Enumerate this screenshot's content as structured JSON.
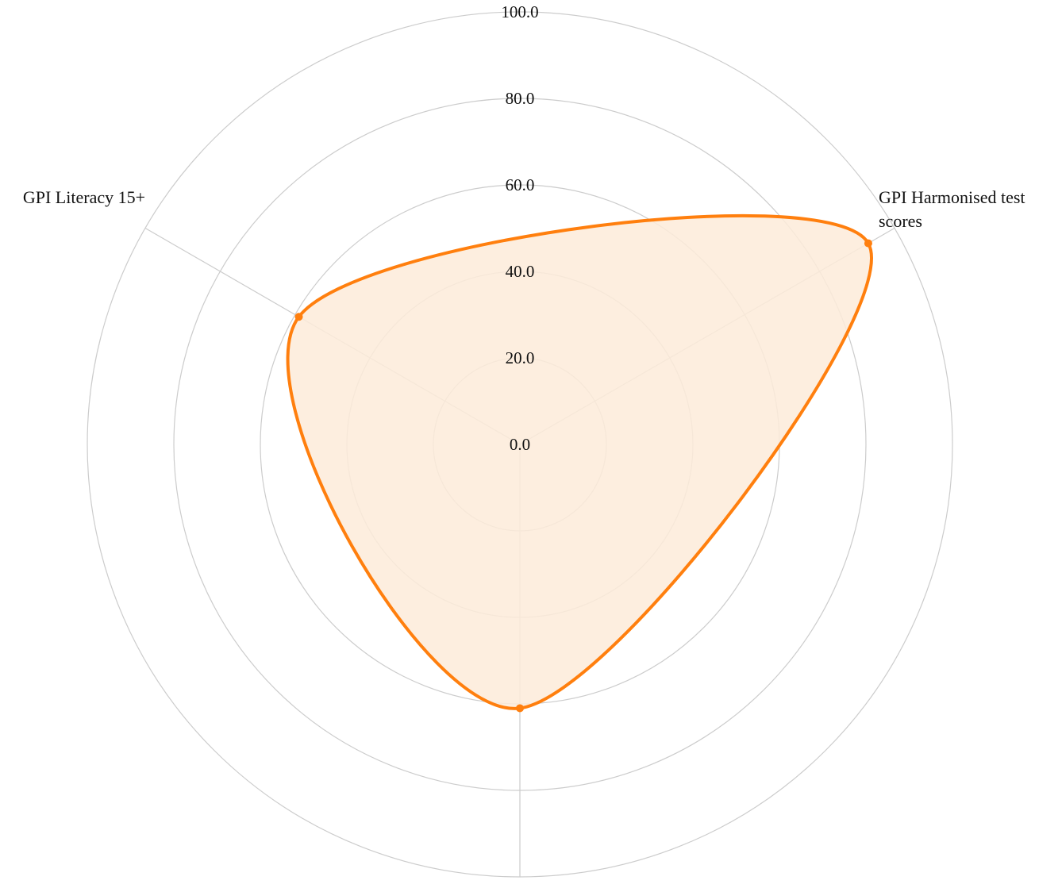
{
  "chart_data": {
    "type": "radar",
    "axes": [
      {
        "label": "GPI Harmonised test scores",
        "lines": [
          "GPI Harmonised test",
          "scores"
        ]
      },
      {
        "label": "",
        "lines": []
      },
      {
        "label": "GPI Literacy 15+",
        "lines": [
          "GPI Literacy 15+"
        ]
      }
    ],
    "radial_ticks": [
      "0.0",
      "20.0",
      "40.0",
      "60.0",
      "80.0",
      "100.0"
    ],
    "rlim": [
      0,
      100
    ],
    "series": [
      {
        "values": [
          93,
          61,
          59
        ]
      }
    ],
    "colors": {
      "series_stroke": "#ff7f0e",
      "series_fill": "#fdebd9",
      "grid": "#cccccc"
    },
    "grid": true
  }
}
